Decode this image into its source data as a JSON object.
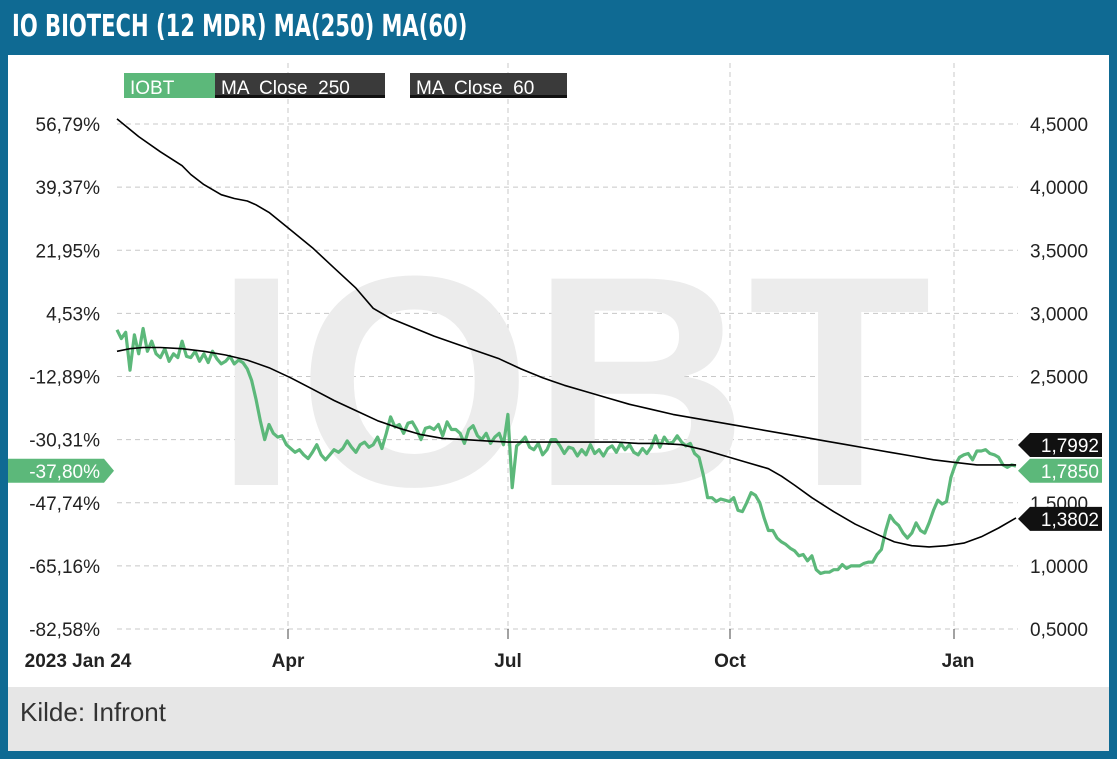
{
  "title": "IO BIOTECH (12 MDR) MA(250) MA(60)",
  "source": "Kilde: Infront",
  "watermark": "IOBT",
  "colors": {
    "frame": "#0f6a93",
    "price": "#5cb87a",
    "ma": "#000000",
    "legend_price_bg": "#5cb87a",
    "legend_ma_bg": "#3a3a3a"
  },
  "chart_data": {
    "type": "line",
    "title": "IO BIOTECH (12 MDR) MA(250) MA(60)",
    "legend": [
      "IOBT",
      "MA  Close  250",
      "MA  Close  60"
    ],
    "legend_placement": "top-left",
    "x_ticks": [
      "2023 Jan 24",
      "Apr",
      "Jul",
      "Oct",
      "Jan"
    ],
    "y_left_ticks": [
      "56,79%",
      "39,37%",
      "21,95%",
      "4,53%",
      "-12,89%",
      "-30,31%",
      "-47,74%",
      "-65,16%",
      "-82,58%"
    ],
    "y_right_ticks": [
      "4,5000",
      "4,0000",
      "3,5000",
      "3,0000",
      "2,5000",
      "2,0000",
      "1,5000",
      "1,0000",
      "0,5000"
    ],
    "y_right_range": [
      0.5,
      4.5
    ],
    "grid": true,
    "current_labels": {
      "left_pct": "-37,80%",
      "ma250": "1,7992",
      "price": "1,7850",
      "ma60": "1,3802"
    },
    "series": [
      {
        "name": "IOBT",
        "points": [
          [
            0,
            2.87
          ],
          [
            2,
            2.8
          ],
          [
            4,
            2.85
          ],
          [
            6,
            2.55
          ],
          [
            8,
            2.83
          ],
          [
            10,
            2.68
          ],
          [
            12,
            2.88
          ],
          [
            14,
            2.7
          ],
          [
            16,
            2.78
          ],
          [
            18,
            2.68
          ],
          [
            20,
            2.65
          ],
          [
            22,
            2.72
          ],
          [
            24,
            2.62
          ],
          [
            26,
            2.68
          ],
          [
            28,
            2.65
          ],
          [
            30,
            2.78
          ],
          [
            32,
            2.66
          ],
          [
            34,
            2.65
          ],
          [
            36,
            2.7
          ],
          [
            38,
            2.62
          ],
          [
            40,
            2.68
          ],
          [
            42,
            2.61
          ],
          [
            44,
            2.7
          ],
          [
            46,
            2.64
          ],
          [
            48,
            2.6
          ],
          [
            50,
            2.62
          ],
          [
            52,
            2.66
          ],
          [
            54,
            2.6
          ],
          [
            56,
            2.63
          ],
          [
            58,
            2.61
          ],
          [
            60,
            2.56
          ],
          [
            62,
            2.47
          ],
          [
            64,
            2.32
          ],
          [
            66,
            2.15
          ],
          [
            68,
            2.0
          ],
          [
            70,
            2.12
          ],
          [
            72,
            2.05
          ],
          [
            74,
            2.02
          ],
          [
            76,
            2.03
          ],
          [
            78,
            1.96
          ],
          [
            80,
            1.93
          ],
          [
            82,
            1.9
          ],
          [
            84,
            1.92
          ],
          [
            86,
            1.88
          ],
          [
            88,
            1.85
          ],
          [
            90,
            1.9
          ],
          [
            92,
            1.96
          ],
          [
            94,
            1.88
          ],
          [
            96,
            1.84
          ],
          [
            98,
            1.88
          ],
          [
            100,
            1.92
          ],
          [
            102,
            1.9
          ],
          [
            104,
            1.93
          ],
          [
            106,
            1.99
          ],
          [
            108,
            1.94
          ],
          [
            110,
            1.9
          ],
          [
            112,
            1.96
          ],
          [
            114,
            1.98
          ],
          [
            116,
            1.94
          ],
          [
            118,
            1.96
          ],
          [
            120,
            2.02
          ],
          [
            122,
            1.93
          ],
          [
            124,
            2.05
          ],
          [
            126,
            2.18
          ],
          [
            128,
            2.1
          ],
          [
            130,
            2.12
          ],
          [
            132,
            2.05
          ],
          [
            134,
            2.13
          ],
          [
            136,
            2.14
          ],
          [
            138,
            2.08
          ],
          [
            140,
            2.0
          ],
          [
            142,
            2.09
          ],
          [
            144,
            2.1
          ],
          [
            146,
            2.08
          ],
          [
            148,
            2.12
          ],
          [
            150,
            2.03
          ],
          [
            152,
            2.14
          ],
          [
            154,
            2.08
          ],
          [
            156,
            2.08
          ],
          [
            158,
            2.05
          ],
          [
            160,
            1.97
          ],
          [
            162,
            2.08
          ],
          [
            164,
            2.11
          ],
          [
            166,
            2.03
          ],
          [
            168,
            2.0
          ],
          [
            170,
            2.05
          ],
          [
            172,
            1.97
          ],
          [
            174,
            2.02
          ],
          [
            176,
            2.05
          ],
          [
            178,
            1.96
          ],
          [
            180,
            2.2
          ],
          [
            182,
            1.62
          ],
          [
            184,
            1.95
          ],
          [
            186,
            1.98
          ],
          [
            188,
            2.02
          ],
          [
            190,
            1.94
          ],
          [
            192,
            1.92
          ],
          [
            194,
            1.97
          ],
          [
            196,
            1.88
          ],
          [
            198,
            1.92
          ],
          [
            200,
            2.0
          ],
          [
            202,
            2.0
          ],
          [
            204,
            1.95
          ],
          [
            206,
            1.89
          ],
          [
            208,
            1.94
          ],
          [
            210,
            1.93
          ],
          [
            212,
            1.87
          ],
          [
            214,
            1.92
          ],
          [
            216,
            1.88
          ],
          [
            218,
            1.96
          ],
          [
            220,
            1.89
          ],
          [
            222,
            1.92
          ],
          [
            224,
            1.87
          ],
          [
            226,
            1.93
          ],
          [
            228,
            1.95
          ],
          [
            230,
            1.9
          ],
          [
            232,
            1.97
          ],
          [
            234,
            1.92
          ],
          [
            236,
            1.96
          ],
          [
            238,
            1.9
          ],
          [
            240,
            1.88
          ],
          [
            242,
            1.93
          ],
          [
            244,
            1.89
          ],
          [
            246,
            1.94
          ],
          [
            248,
            2.03
          ],
          [
            250,
            1.94
          ],
          [
            252,
            2.02
          ],
          [
            254,
            1.97
          ],
          [
            256,
            1.98
          ],
          [
            258,
            2.03
          ],
          [
            260,
            1.98
          ],
          [
            262,
            1.95
          ],
          [
            264,
            1.97
          ],
          [
            266,
            1.89
          ],
          [
            268,
            1.86
          ],
          [
            270,
            1.72
          ],
          [
            272,
            1.54
          ],
          [
            274,
            1.54
          ],
          [
            276,
            1.51
          ],
          [
            278,
            1.53
          ],
          [
            280,
            1.52
          ],
          [
            282,
            1.51
          ],
          [
            284,
            1.54
          ],
          [
            286,
            1.44
          ],
          [
            288,
            1.43
          ],
          [
            290,
            1.5
          ],
          [
            292,
            1.58
          ],
          [
            294,
            1.56
          ],
          [
            296,
            1.5
          ],
          [
            298,
            1.38
          ],
          [
            300,
            1.28
          ],
          [
            302,
            1.28
          ],
          [
            304,
            1.22
          ],
          [
            306,
            1.19
          ],
          [
            308,
            1.17
          ],
          [
            310,
            1.14
          ],
          [
            312,
            1.12
          ],
          [
            314,
            1.08
          ],
          [
            316,
            1.09
          ],
          [
            318,
            1.04
          ],
          [
            320,
            1.08
          ],
          [
            322,
            0.97
          ],
          [
            324,
            0.94
          ],
          [
            326,
            0.95
          ],
          [
            328,
            0.95
          ],
          [
            330,
            0.97
          ],
          [
            332,
            0.97
          ],
          [
            334,
            1.01
          ],
          [
            336,
            0.98
          ],
          [
            338,
            1.0
          ],
          [
            340,
            1.0
          ],
          [
            342,
            1.0
          ],
          [
            344,
            1.02
          ],
          [
            346,
            1.03
          ],
          [
            348,
            1.03
          ],
          [
            350,
            1.09
          ],
          [
            352,
            1.13
          ],
          [
            354,
            1.28
          ],
          [
            356,
            1.4
          ],
          [
            358,
            1.35
          ],
          [
            360,
            1.32
          ],
          [
            362,
            1.26
          ],
          [
            364,
            1.22
          ],
          [
            366,
            1.26
          ],
          [
            368,
            1.34
          ],
          [
            370,
            1.28
          ],
          [
            372,
            1.26
          ],
          [
            374,
            1.34
          ],
          [
            376,
            1.44
          ],
          [
            378,
            1.52
          ],
          [
            380,
            1.49
          ],
          [
            382,
            1.51
          ],
          [
            384,
            1.7
          ],
          [
            386,
            1.8
          ],
          [
            388,
            1.86
          ],
          [
            390,
            1.88
          ],
          [
            392,
            1.89
          ],
          [
            394,
            1.84
          ],
          [
            396,
            1.91
          ],
          [
            398,
            1.91
          ],
          [
            400,
            1.92
          ],
          [
            402,
            1.89
          ],
          [
            404,
            1.88
          ],
          [
            406,
            1.86
          ],
          [
            408,
            1.8
          ],
          [
            410,
            1.78
          ],
          [
            412,
            1.8
          ],
          [
            414,
            1.79
          ]
        ]
      },
      {
        "name": "MA  Close  250",
        "points": [
          [
            0,
            4.54
          ],
          [
            10,
            4.4
          ],
          [
            20,
            4.28
          ],
          [
            30,
            4.17
          ],
          [
            34,
            4.1
          ],
          [
            40,
            4.02
          ],
          [
            48,
            3.94
          ],
          [
            54,
            3.91
          ],
          [
            60,
            3.89
          ],
          [
            64,
            3.86
          ],
          [
            70,
            3.8
          ],
          [
            80,
            3.66
          ],
          [
            90,
            3.52
          ],
          [
            100,
            3.36
          ],
          [
            110,
            3.2
          ],
          [
            118,
            3.04
          ],
          [
            126,
            2.96
          ],
          [
            136,
            2.89
          ],
          [
            146,
            2.82
          ],
          [
            156,
            2.76
          ],
          [
            166,
            2.7
          ],
          [
            176,
            2.64
          ],
          [
            186,
            2.56
          ],
          [
            196,
            2.49
          ],
          [
            206,
            2.43
          ],
          [
            216,
            2.38
          ],
          [
            226,
            2.33
          ],
          [
            236,
            2.28
          ],
          [
            246,
            2.24
          ],
          [
            256,
            2.2
          ],
          [
            266,
            2.17
          ],
          [
            276,
            2.14
          ],
          [
            286,
            2.11
          ],
          [
            296,
            2.08
          ],
          [
            306,
            2.05
          ],
          [
            316,
            2.02
          ],
          [
            326,
            1.99
          ],
          [
            336,
            1.96
          ],
          [
            346,
            1.93
          ],
          [
            356,
            1.9
          ],
          [
            366,
            1.87
          ],
          [
            376,
            1.84
          ],
          [
            386,
            1.82
          ],
          [
            396,
            1.8
          ],
          [
            406,
            1.8
          ],
          [
            414,
            1.8
          ]
        ]
      },
      {
        "name": "MA  Close  60",
        "points": [
          [
            0,
            2.7
          ],
          [
            6,
            2.72
          ],
          [
            12,
            2.73
          ],
          [
            20,
            2.73
          ],
          [
            30,
            2.72
          ],
          [
            40,
            2.7
          ],
          [
            50,
            2.67
          ],
          [
            60,
            2.63
          ],
          [
            70,
            2.57
          ],
          [
            80,
            2.49
          ],
          [
            90,
            2.4
          ],
          [
            100,
            2.31
          ],
          [
            110,
            2.23
          ],
          [
            120,
            2.15
          ],
          [
            130,
            2.09
          ],
          [
            140,
            2.04
          ],
          [
            150,
            2.01
          ],
          [
            160,
            2.0
          ],
          [
            170,
            1.99
          ],
          [
            180,
            1.98
          ],
          [
            190,
            1.98
          ],
          [
            200,
            1.98
          ],
          [
            210,
            1.98
          ],
          [
            220,
            1.98
          ],
          [
            230,
            1.98
          ],
          [
            240,
            1.97
          ],
          [
            250,
            1.97
          ],
          [
            260,
            1.96
          ],
          [
            270,
            1.92
          ],
          [
            280,
            1.87
          ],
          [
            290,
            1.82
          ],
          [
            300,
            1.77
          ],
          [
            306,
            1.71
          ],
          [
            312,
            1.64
          ],
          [
            320,
            1.54
          ],
          [
            330,
            1.43
          ],
          [
            340,
            1.33
          ],
          [
            350,
            1.25
          ],
          [
            358,
            1.19
          ],
          [
            366,
            1.16
          ],
          [
            374,
            1.15
          ],
          [
            382,
            1.16
          ],
          [
            390,
            1.18
          ],
          [
            398,
            1.23
          ],
          [
            406,
            1.3
          ],
          [
            414,
            1.38
          ]
        ]
      }
    ]
  }
}
